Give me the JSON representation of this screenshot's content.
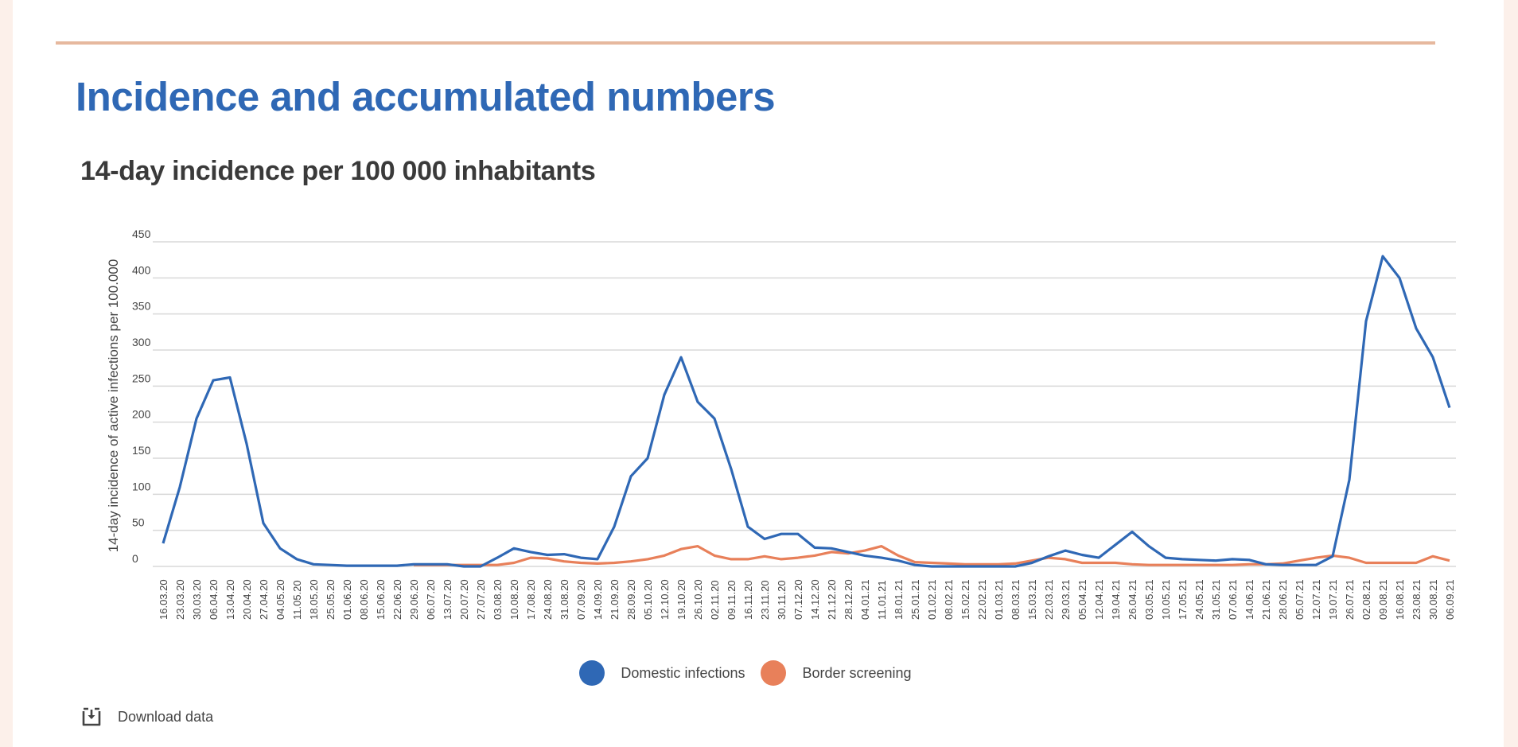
{
  "page": {
    "title": "Incidence and accumulated numbers",
    "subtitle": "14-day incidence per 100 000 inhabitants",
    "download_label": "Download data",
    "accent_color": "#2f68b5",
    "rule_color": "#e6b89e"
  },
  "legend": [
    {
      "label": "Domestic infections",
      "color": "#2f68b5",
      "icon": "circle"
    },
    {
      "label": "Border screening",
      "color": "#e8805a",
      "icon": "circle"
    }
  ],
  "chart_data": {
    "type": "line",
    "title": "14-day incidence per 100 000 inhabitants",
    "xlabel": "",
    "ylabel": "14-day incidence of active infections per 100.000",
    "ylim": [
      0,
      450
    ],
    "yticks": [
      0,
      50,
      100,
      150,
      200,
      250,
      300,
      350,
      400,
      450
    ],
    "grid": true,
    "legend_position": "bottom",
    "x": [
      "16.03.20",
      "23.03.20",
      "30.03.20",
      "06.04.20",
      "13.04.20",
      "20.04.20",
      "27.04.20",
      "04.05.20",
      "11.05.20",
      "18.05.20",
      "25.05.20",
      "01.06.20",
      "08.06.20",
      "15.06.20",
      "22.06.20",
      "29.06.20",
      "06.07.20",
      "13.07.20",
      "20.07.20",
      "27.07.20",
      "03.08.20",
      "10.08.20",
      "17.08.20",
      "24.08.20",
      "31.08.20",
      "07.09.20",
      "14.09.20",
      "21.09.20",
      "28.09.20",
      "05.10.20",
      "12.10.20",
      "19.10.20",
      "26.10.20",
      "02.11.20",
      "09.11.20",
      "16.11.20",
      "23.11.20",
      "30.11.20",
      "07.12.20",
      "14.12.20",
      "21.12.20",
      "28.12.20",
      "04.01.21",
      "11.01.21",
      "18.01.21",
      "25.01.21",
      "01.02.21",
      "08.02.21",
      "15.02.21",
      "22.02.21",
      "01.03.21",
      "08.03.21",
      "15.03.21",
      "22.03.21",
      "29.03.21",
      "05.04.21",
      "12.04.21",
      "19.04.21",
      "26.04.21",
      "03.05.21",
      "10.05.21",
      "17.05.21",
      "24.05.21",
      "31.05.21",
      "07.06.21",
      "14.06.21",
      "21.06.21",
      "28.06.21",
      "05.07.21",
      "12.07.21",
      "19.07.21",
      "26.07.21",
      "02.08.21",
      "09.08.21",
      "16.08.21",
      "23.08.21",
      "30.08.21",
      "06.09.21"
    ],
    "series": [
      {
        "name": "Domestic infections",
        "color": "#2f68b5",
        "values": [
          32,
          110,
          205,
          258,
          262,
          170,
          60,
          25,
          10,
          3,
          2,
          1,
          1,
          1,
          1,
          3,
          3,
          3,
          0,
          0,
          12,
          25,
          20,
          16,
          17,
          12,
          10,
          55,
          125,
          150,
          238,
          290,
          228,
          205,
          135,
          55,
          38,
          45,
          45,
          26,
          25,
          20,
          15,
          12,
          8,
          2,
          0,
          0,
          0,
          0,
          0,
          0,
          5,
          14,
          22,
          16,
          12,
          30,
          48,
          28,
          12,
          10,
          9,
          8,
          10,
          9,
          3,
          2,
          2,
          2,
          14,
          120,
          340,
          430,
          400,
          330,
          290,
          220
        ]
      },
      {
        "name": "Border screening",
        "color": "#e8805a",
        "values": [
          null,
          null,
          null,
          null,
          null,
          null,
          null,
          null,
          null,
          null,
          null,
          null,
          null,
          null,
          null,
          2,
          2,
          2,
          2,
          2,
          2,
          5,
          12,
          11,
          7,
          5,
          4,
          5,
          7,
          10,
          15,
          24,
          28,
          15,
          10,
          10,
          14,
          10,
          12,
          15,
          20,
          18,
          22,
          28,
          15,
          6,
          5,
          4,
          3,
          3,
          3,
          4,
          8,
          12,
          10,
          5,
          5,
          5,
          3,
          2,
          2,
          2,
          2,
          2,
          2,
          3,
          3,
          4,
          8,
          12,
          15,
          12,
          5,
          5,
          5,
          5,
          14,
          8
        ]
      }
    ]
  }
}
